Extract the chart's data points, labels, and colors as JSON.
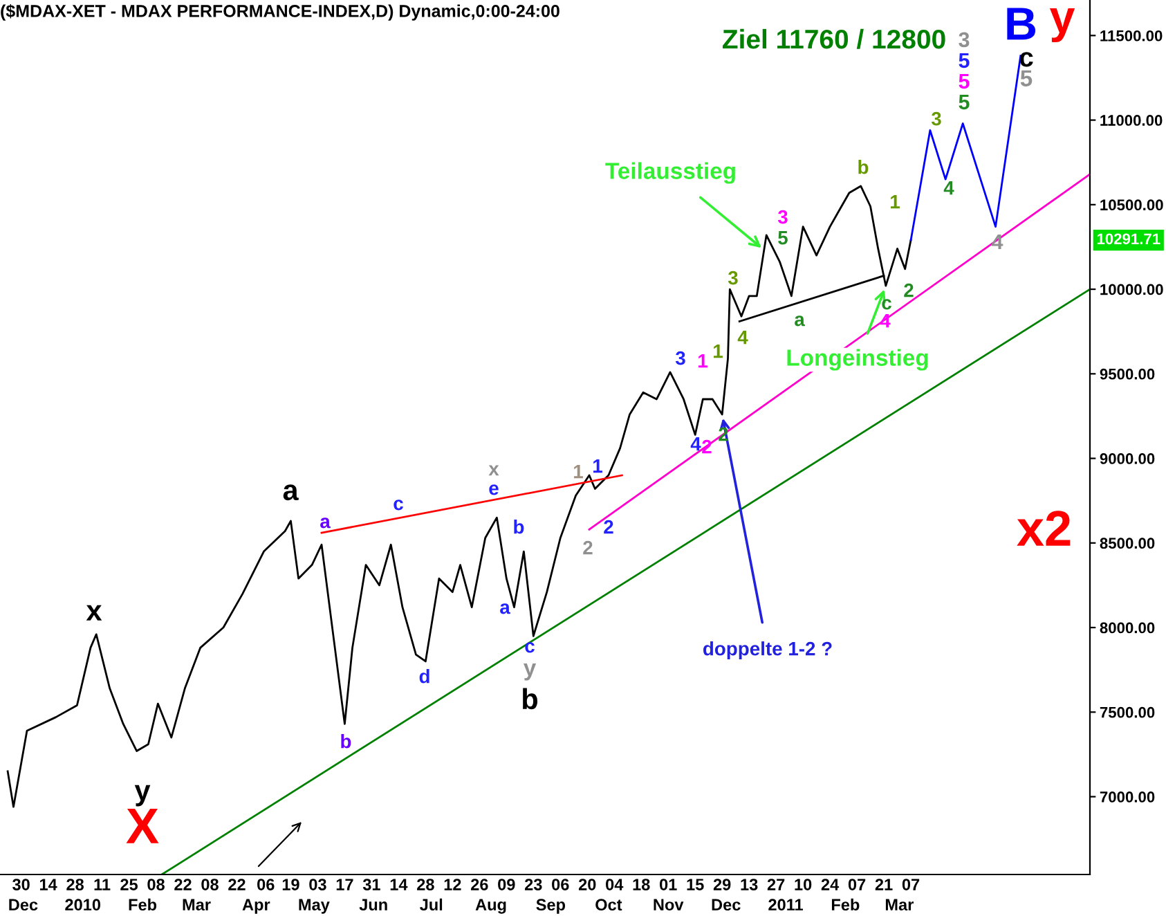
{
  "chart_data": {
    "type": "line",
    "title": "($MDAX-XET - MDAX PERFORMANCE-INDEX,D) Dynamic,0:00-24:00",
    "xlim": [
      "2009-11-19",
      "2011-06-08"
    ],
    "ylim": [
      6540,
      11710
    ],
    "yticks": [
      {
        "value": 7000,
        "label": "7000.00"
      },
      {
        "value": 7500,
        "label": "7500.00"
      },
      {
        "value": 8000,
        "label": "8000.00"
      },
      {
        "value": 8500,
        "label": "8500.00"
      },
      {
        "value": 9000,
        "label": "9000.00"
      },
      {
        "value": 9500,
        "label": "9500.00"
      },
      {
        "value": 10000,
        "label": "10000.00"
      },
      {
        "value": 10500,
        "label": "10500.00"
      },
      {
        "value": 11000,
        "label": "11000.00"
      },
      {
        "value": 11500,
        "label": "11500.00"
      }
    ],
    "xticks": [
      {
        "value": "2009-11-30",
        "label": "30"
      },
      {
        "value": "2009-12-14",
        "label": "14"
      },
      {
        "value": "2009-12-28",
        "label": "28"
      },
      {
        "value": "2010-01-11",
        "label": "11"
      },
      {
        "value": "2010-01-25",
        "label": "25"
      },
      {
        "value": "2010-02-08",
        "label": "08"
      },
      {
        "value": "2010-02-22",
        "label": "22"
      },
      {
        "value": "2010-03-08",
        "label": "08"
      },
      {
        "value": "2010-03-22",
        "label": "22"
      },
      {
        "value": "2010-04-06",
        "label": "06"
      },
      {
        "value": "2010-04-19",
        "label": "19"
      },
      {
        "value": "2010-05-03",
        "label": "03"
      },
      {
        "value": "2010-05-17",
        "label": "17"
      },
      {
        "value": "2010-05-31",
        "label": "31"
      },
      {
        "value": "2010-06-14",
        "label": "14"
      },
      {
        "value": "2010-06-28",
        "label": "28"
      },
      {
        "value": "2010-07-12",
        "label": "12"
      },
      {
        "value": "2010-07-26",
        "label": "26"
      },
      {
        "value": "2010-08-09",
        "label": "09"
      },
      {
        "value": "2010-08-23",
        "label": "23"
      },
      {
        "value": "2010-09-06",
        "label": "06"
      },
      {
        "value": "2010-09-20",
        "label": "20"
      },
      {
        "value": "2010-10-04",
        "label": "04"
      },
      {
        "value": "2010-10-18",
        "label": "18"
      },
      {
        "value": "2010-11-01",
        "label": "01"
      },
      {
        "value": "2010-11-15",
        "label": "15"
      },
      {
        "value": "2010-11-29",
        "label": "29"
      },
      {
        "value": "2010-12-13",
        "label": "13"
      },
      {
        "value": "2010-12-27",
        "label": "27"
      },
      {
        "value": "2011-01-10",
        "label": "10"
      },
      {
        "value": "2011-01-24",
        "label": "24"
      },
      {
        "value": "2011-02-07",
        "label": "07"
      },
      {
        "value": "2011-02-21",
        "label": "21"
      },
      {
        "value": "2011-03-07",
        "label": "07"
      }
    ],
    "x2lim": [
      "2009-11-19",
      "2011-06-08"
    ],
    "x2ticks": [
      {
        "value": "2009-12-01",
        "label": "Dec"
      },
      {
        "value": "2010-01-01",
        "label": "2010"
      },
      {
        "value": "2010-02-01",
        "label": "Feb"
      },
      {
        "value": "2010-03-01",
        "label": "Mar"
      },
      {
        "value": "2010-04-01",
        "label": "Apr"
      },
      {
        "value": "2010-05-01",
        "label": "May"
      },
      {
        "value": "2010-06-01",
        "label": "Jun"
      },
      {
        "value": "2010-07-01",
        "label": "Jul"
      },
      {
        "value": "2010-08-01",
        "label": "Aug"
      },
      {
        "value": "2010-09-01",
        "label": "Sep"
      },
      {
        "value": "2010-10-01",
        "label": "Oct"
      },
      {
        "value": "2010-11-01",
        "label": "Nov"
      },
      {
        "value": "2010-12-01",
        "label": "Dec"
      },
      {
        "value": "2011-01-01",
        "label": "2011"
      },
      {
        "value": "2011-02-01",
        "label": "Feb"
      },
      {
        "value": "2011-03-01",
        "label": "Mar"
      }
    ],
    "grid": false,
    "legend": false,
    "series": [
      {
        "color": "#000000",
        "x": [
          "2009-11-23",
          "2009-11-26",
          "2009-12-03",
          "2009-12-18",
          "2009-12-29",
          "2010-01-05",
          "2010-01-08",
          "2010-01-15",
          "2010-01-22",
          "2010-01-29",
          "2010-02-04",
          "2010-02-09",
          "2010-02-16",
          "2010-02-23",
          "2010-03-03",
          "2010-03-15",
          "2010-03-25",
          "2010-04-05",
          "2010-04-16",
          "2010-04-19",
          "2010-04-23",
          "2010-04-30",
          "2010-05-05",
          "2010-05-11",
          "2010-05-17",
          "2010-05-21",
          "2010-05-28",
          "2010-06-04",
          "2010-06-10",
          "2010-06-16",
          "2010-06-23",
          "2010-06-28",
          "2010-07-05",
          "2010-07-12",
          "2010-07-16",
          "2010-07-22",
          "2010-07-29",
          "2010-08-04",
          "2010-08-09",
          "2010-08-13",
          "2010-08-18",
          "2010-08-23",
          "2010-08-30",
          "2010-09-06",
          "2010-09-14",
          "2010-09-21",
          "2010-09-24",
          "2010-10-01",
          "2010-10-07",
          "2010-10-12",
          "2010-10-19",
          "2010-10-26",
          "2010-11-02",
          "2010-11-09",
          "2010-11-15",
          "2010-11-19",
          "2010-11-24",
          "2010-11-29",
          "2010-12-02",
          "2010-12-03",
          "2010-12-09",
          "2010-12-13",
          "2010-12-17",
          "2010-12-22",
          "2010-12-29",
          "2011-01-04",
          "2011-01-10",
          "2011-01-17",
          "2011-01-24",
          "2011-01-28",
          "2011-02-03",
          "2011-02-09",
          "2011-02-14",
          "2011-02-18",
          "2011-02-22",
          "2011-02-28",
          "2011-03-04",
          "2011-03-07"
        ],
        "values": [
          7150,
          6940,
          7390,
          7470,
          7540,
          7880,
          7960,
          7640,
          7430,
          7270,
          7310,
          7550,
          7350,
          7640,
          7880,
          8000,
          8200,
          8450,
          8570,
          8630,
          8290,
          8370,
          8490,
          7960,
          7430,
          7880,
          8370,
          8250,
          8490,
          8120,
          7840,
          7800,
          8290,
          8210,
          8370,
          8120,
          8530,
          8650,
          8290,
          8120,
          8450,
          7950,
          8210,
          8530,
          8780,
          8900,
          8820,
          8900,
          9060,
          9260,
          9390,
          9350,
          9510,
          9350,
          9140,
          9350,
          9350,
          9260,
          9590,
          10000,
          9840,
          9960,
          9960,
          10320,
          10160,
          9960,
          10370,
          10200,
          10370,
          10450,
          10570,
          10610,
          10490,
          10240,
          10020,
          10240,
          10120,
          10290
        ]
      },
      {
        "color": "#0000ff",
        "x": [
          "2011-03-07",
          "2011-03-17",
          "2011-03-25",
          "2011-04-03",
          "2011-04-20",
          "2011-05-03"
        ],
        "values": [
          10290,
          10940,
          10650,
          10980,
          10370,
          11380
        ]
      },
      {
        "color": "#008000",
        "x": [
          "2010-02-11",
          "2011-06-08"
        ],
        "values": [
          6540,
          10000
        ]
      },
      {
        "color": "#ff00cc",
        "x": [
          "2010-09-21",
          "2011-06-08"
        ],
        "values": [
          8580,
          10680
        ]
      },
      {
        "color": "#000000",
        "x": [
          "2010-12-08",
          "2011-02-21"
        ],
        "values": [
          9810,
          10080
        ]
      },
      {
        "color": "#ff0000",
        "x": [
          "2010-05-05",
          "2010-10-08"
        ],
        "values": [
          8560,
          8900
        ]
      }
    ],
    "annotations": [
      "Ziel 11760 / 12800",
      "10291.71",
      {
        "text": "Teilausstieg",
        "x": "2010-12-21",
        "y": 10230
      },
      {
        "text": "Longeinstieg",
        "x": "2011-02-22",
        "y": 10020
      },
      {
        "text": "doppelte 1-2 ?",
        "x": "2010-11-29",
        "y": 9260
      },
      "x",
      "y",
      "X",
      "a",
      "a",
      "b",
      "c",
      "d",
      "x",
      "e",
      "b",
      "a",
      "c",
      "y",
      "b",
      "1",
      "1",
      "2",
      "2",
      "3",
      "1",
      "1",
      "4",
      "2",
      "2",
      "3",
      "4",
      "3",
      "5",
      "a",
      "b",
      "1",
      "c",
      "4",
      "2",
      "3",
      "4",
      "4",
      "3",
      "5",
      "5",
      "5",
      "B",
      "c",
      "5",
      "y",
      "x2"
    ]
  }
}
